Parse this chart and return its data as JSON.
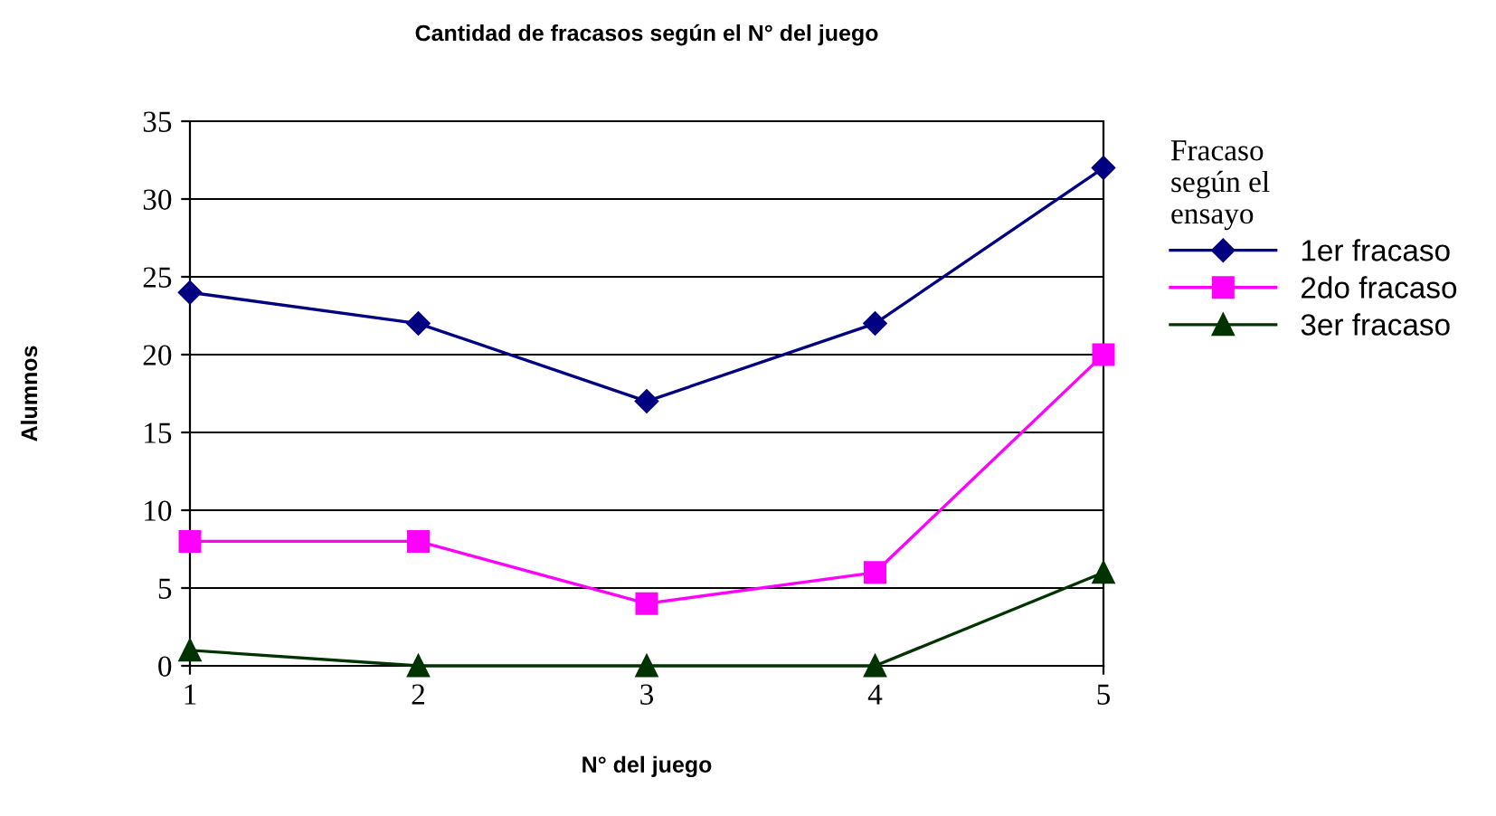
{
  "chart_data": {
    "type": "line",
    "title": "Cantidad de fracasos según el N° del juego",
    "xlabel": "N° del juego",
    "ylabel": "Alumnos",
    "legend_title": "Fracaso\nsegún el\nensayo",
    "categories": [
      "1",
      "2",
      "3",
      "4",
      "5"
    ],
    "series": [
      {
        "name": "1er fracaso",
        "color": "#000080",
        "marker": "diamond",
        "values": [
          24,
          22,
          17,
          22,
          32
        ]
      },
      {
        "name": "2do fracaso",
        "color": "#ff00ff",
        "marker": "square",
        "values": [
          8,
          8,
          4,
          6,
          20
        ]
      },
      {
        "name": "3er fracaso",
        "color": "#003300",
        "marker": "triangle",
        "values": [
          1,
          0,
          0,
          0,
          6
        ]
      }
    ],
    "ylim": [
      0,
      35
    ],
    "yticks": [
      0,
      5,
      10,
      15,
      20,
      25,
      30,
      35
    ],
    "grid": "y",
    "legend": "right",
    "line_style": "solid"
  }
}
